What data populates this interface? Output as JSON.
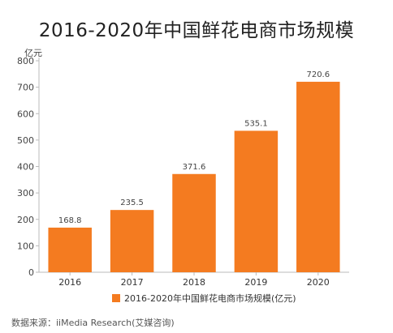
{
  "chart_data": {
    "type": "bar",
    "title": "2016-2020年中国鲜花电商市场规模",
    "unit_label": "亿元",
    "categories": [
      "2016",
      "2017",
      "2018",
      "2019",
      "2020"
    ],
    "series": [
      {
        "name": "2016-2020年中国鲜花电商市场规模(亿元)",
        "values": [
          168.8,
          235.5,
          371.6,
          535.1,
          720.6
        ],
        "color": "#f47b20"
      }
    ],
    "data_labels": [
      "168.8",
      "235.5",
      "371.6",
      "535.1",
      "720.6"
    ],
    "yticks": [
      0,
      100,
      200,
      300,
      400,
      500,
      600,
      700,
      800
    ],
    "ylim": [
      0,
      800
    ],
    "grid": false,
    "legend_position": "bottom"
  },
  "source_text": "数据来源：iiMedia Research(艾媒咨询)"
}
